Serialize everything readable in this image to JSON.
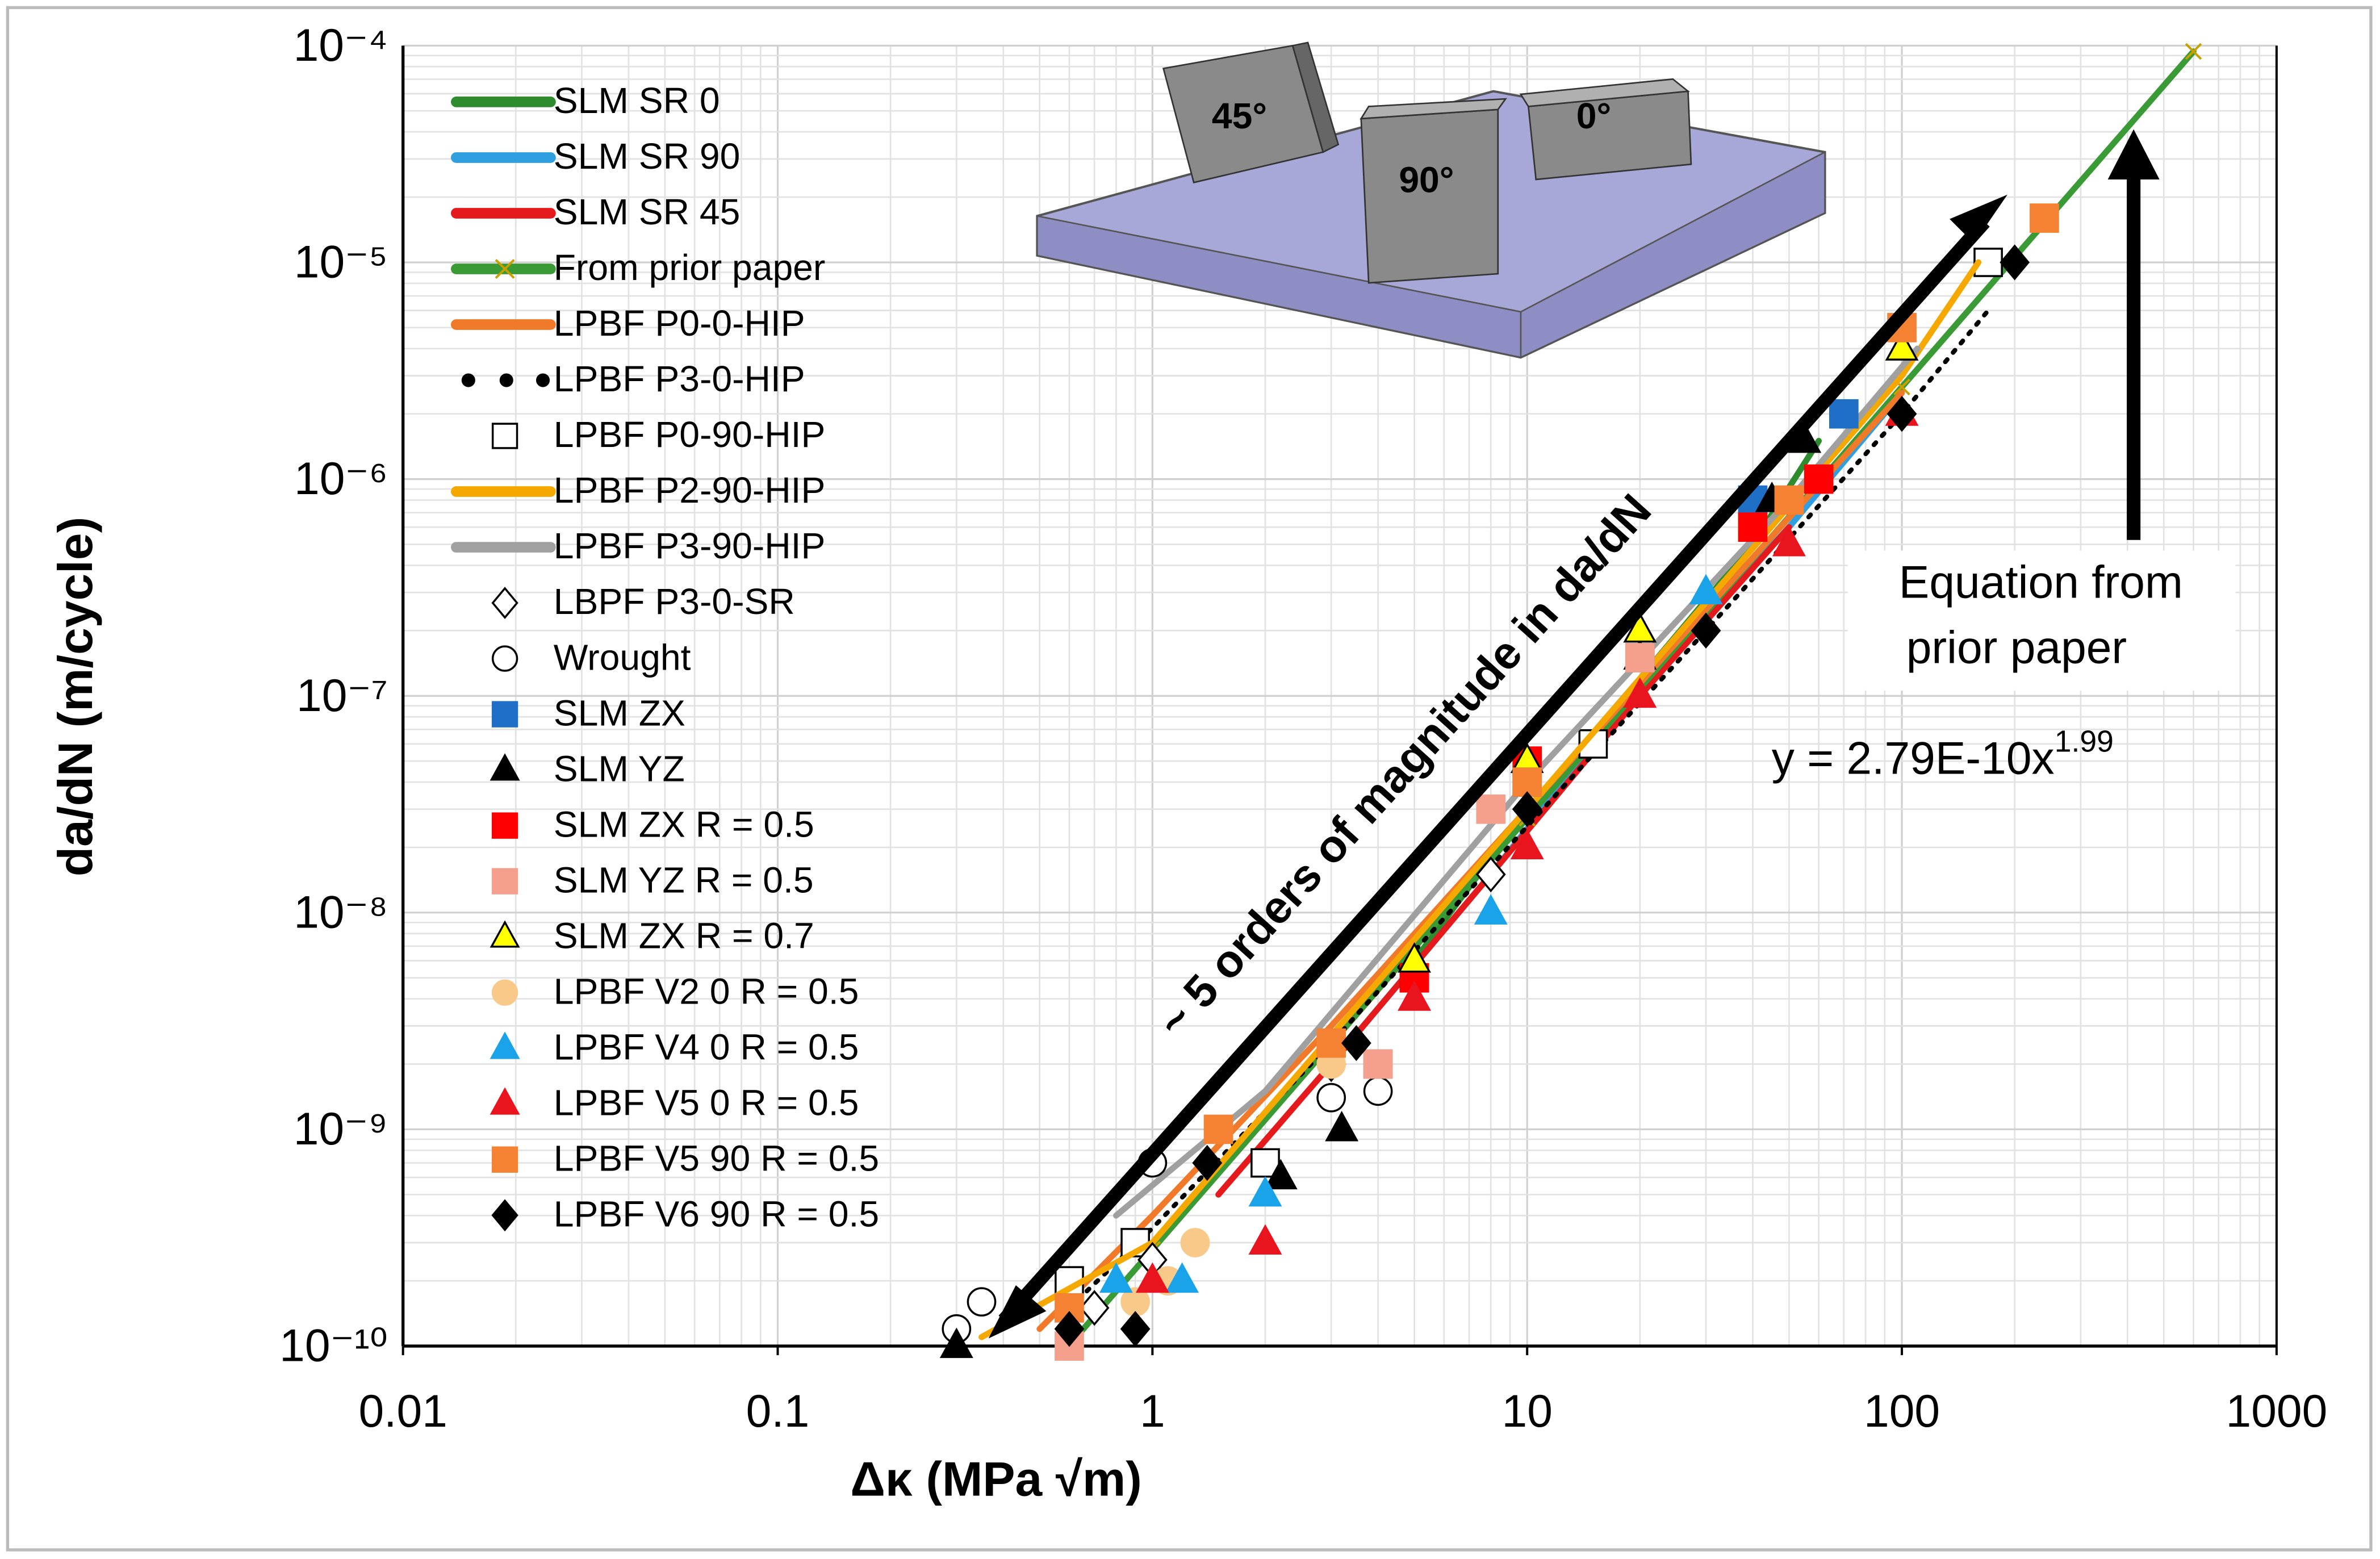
{
  "chart_data": {
    "type": "scatter",
    "log_x": true,
    "log_y": true,
    "grid": true,
    "x_label": "Δκ (MPa √m)",
    "y_label": "da/dN (m/cycle)",
    "xlim": [
      0.01,
      1000
    ],
    "xticks": [
      0.01,
      0.1,
      1,
      10,
      100,
      1000
    ],
    "ylim": [
      1e-10,
      0.0001
    ],
    "yticks": [
      {
        "value": 1e-10,
        "label": "10⁻¹⁰"
      },
      {
        "value": 1e-09,
        "label": "10⁻⁹"
      },
      {
        "value": 1e-08,
        "label": "10⁻⁸"
      },
      {
        "value": 1e-07,
        "label": "10⁻⁷"
      },
      {
        "value": 1e-06,
        "label": "10⁻⁶"
      },
      {
        "value": 1e-05,
        "label": "10⁻⁵"
      },
      {
        "value": 0.0001,
        "label": "10⁻⁴"
      }
    ],
    "annotations": {
      "arrow_text": "~ 5 orders of magnitude in da/dN",
      "equation_note": [
        "Equation from",
        "prior paper"
      ],
      "equation": "y = 2.79E-10x",
      "equation_exponent": "1.99"
    },
    "inset_labels": [
      "45°",
      "90°",
      "0°"
    ],
    "series": [
      {
        "name": "SLM SR 0",
        "color": "#2e8b2e",
        "marker": "line",
        "x": [
          5,
          10,
          20,
          40,
          60
        ],
        "values": [
          6e-09,
          3e-08,
          1.2e-07,
          5e-07,
          1.5e-06
        ]
      },
      {
        "name": "SLM SR 90",
        "color": "#2f9fe0",
        "marker": "line",
        "x": [
          3,
          8,
          20,
          50,
          100
        ],
        "values": [
          2e-09,
          1.5e-08,
          1.1e-07,
          6e-07,
          2.5e-06
        ]
      },
      {
        "name": "SLM SR 45",
        "color": "#e41a1c",
        "marker": "line",
        "x": [
          1.5,
          3,
          8,
          20,
          50
        ],
        "values": [
          5e-10,
          2e-09,
          1.5e-08,
          1e-07,
          6e-07
        ]
      },
      {
        "name": "From prior paper",
        "color": "#3a9a35",
        "marker": "x-line",
        "x": [
          0.6,
          1,
          10,
          100,
          600
        ],
        "values": [
          1.01e-10,
          2.79e-10,
          2.73e-08,
          2.66e-06,
          9.4e-05
        ]
      },
      {
        "name": "LPBF P0-0-HIP",
        "color": "#f07a2a",
        "marker": "line",
        "x": [
          0.5,
          1,
          3,
          10,
          30,
          100
        ],
        "values": [
          1.2e-10,
          4e-10,
          3e-09,
          3e-08,
          2.5e-07,
          2.5e-06
        ]
      },
      {
        "name": "LPBF P3-0-HIP",
        "color": "#000000",
        "marker": "dotted",
        "x": [
          0.6,
          1,
          3,
          10,
          30,
          100,
          170
        ],
        "values": [
          1.5e-10,
          3.5e-10,
          2.5e-09,
          2.5e-08,
          2e-07,
          2e-06,
          6e-06
        ]
      },
      {
        "name": "LPBF P0-90-HIP",
        "color": "#000000",
        "marker": "square-open",
        "x": [
          0.6,
          0.9,
          2,
          5,
          15,
          170
        ],
        "values": [
          2e-10,
          3e-10,
          7e-10,
          5e-09,
          6e-08,
          1e-05
        ]
      },
      {
        "name": "LPBF P2-90-HIP",
        "color": "#f5a800",
        "marker": "line",
        "x": [
          0.35,
          1,
          10,
          100,
          160
        ],
        "values": [
          1.1e-10,
          3e-10,
          3e-08,
          3e-06,
          1e-05
        ]
      },
      {
        "name": "LPBF P3-90-HIP",
        "color": "#a0a0a0",
        "marker": "line",
        "x": [
          0.8,
          2,
          10,
          50,
          110
        ],
        "values": [
          4e-10,
          1.5e-09,
          4e-08,
          8e-07,
          4e-06
        ]
      },
      {
        "name": "LBPF P3-0-SR",
        "color": "#000000",
        "marker": "diamond-open",
        "x": [
          0.7,
          1,
          3,
          8
        ],
        "values": [
          1.5e-10,
          2.5e-10,
          2e-09,
          1.5e-08
        ]
      },
      {
        "name": "Wrought",
        "color": "#000000",
        "marker": "circle-open",
        "x": [
          0.3,
          0.35,
          1,
          3,
          4
        ],
        "values": [
          1.2e-10,
          1.6e-10,
          7e-10,
          1.4e-09,
          1.5e-09
        ]
      },
      {
        "name": "SLM ZX",
        "color": "#1f6fc6",
        "marker": "square",
        "x": [
          4,
          10,
          20,
          40,
          70
        ],
        "values": [
          2e-09,
          4e-08,
          1.5e-07,
          8e-07,
          2e-06
        ]
      },
      {
        "name": "SLM YZ",
        "color": "#000000",
        "marker": "triangle",
        "x": [
          0.3,
          2.2,
          3.2,
          20,
          45,
          55
        ],
        "values": [
          1e-10,
          6e-10,
          1e-09,
          1.5e-07,
          8e-07,
          1.5e-06
        ]
      },
      {
        "name": "SLM ZX R = 0.5",
        "color": "#ff0000",
        "marker": "square",
        "x": [
          5,
          10,
          40,
          60
        ],
        "values": [
          5e-09,
          5e-08,
          6e-07,
          1e-06
        ]
      },
      {
        "name": "SLM YZ R = 0.5",
        "color": "#f4a08c",
        "marker": "square",
        "x": [
          0.6,
          4,
          8,
          20
        ],
        "values": [
          1e-10,
          2e-09,
          3e-08,
          1.5e-07
        ]
      },
      {
        "name": "SLM ZX R = 0.7",
        "color": "#ffff00",
        "marker": "triangle-edged",
        "x": [
          5,
          10,
          20,
          100
        ],
        "values": [
          6e-09,
          5e-08,
          2e-07,
          4e-06
        ]
      },
      {
        "name": "LPBF V2 0 R = 0.5",
        "color": "#f9c98a",
        "marker": "circle",
        "x": [
          0.9,
          1.1,
          1.3,
          3
        ],
        "values": [
          1.6e-10,
          2e-10,
          3e-10,
          2e-09
        ]
      },
      {
        "name": "LPBF V4 0 R = 0.5",
        "color": "#1aa3e8",
        "marker": "triangle",
        "x": [
          0.8,
          1.2,
          2,
          8,
          30
        ],
        "values": [
          2e-10,
          2e-10,
          5e-10,
          1e-08,
          3e-07
        ]
      },
      {
        "name": "LPBF V5 0 R = 0.5",
        "color": "#e8141e",
        "marker": "triangle",
        "x": [
          1,
          2,
          5,
          10,
          20,
          50,
          100
        ],
        "values": [
          2e-10,
          3e-10,
          4e-09,
          2e-08,
          1e-07,
          5e-07,
          2e-06
        ]
      },
      {
        "name": "LPBF V5 90 R = 0.5",
        "color": "#f58232",
        "marker": "square",
        "x": [
          0.6,
          1.5,
          3,
          10,
          50,
          100,
          240
        ],
        "values": [
          1.5e-10,
          1e-09,
          2.5e-09,
          4e-08,
          8e-07,
          5e-06,
          1.6e-05
        ]
      },
      {
        "name": "LPBF V6 90 R = 0.5",
        "color": "#000000",
        "marker": "diamond",
        "x": [
          0.6,
          0.9,
          1.4,
          3.5,
          10,
          30,
          100,
          200
        ],
        "values": [
          1.2e-10,
          1.2e-10,
          7e-10,
          2.5e-09,
          3e-08,
          2e-07,
          2e-06,
          1e-05
        ]
      }
    ]
  }
}
